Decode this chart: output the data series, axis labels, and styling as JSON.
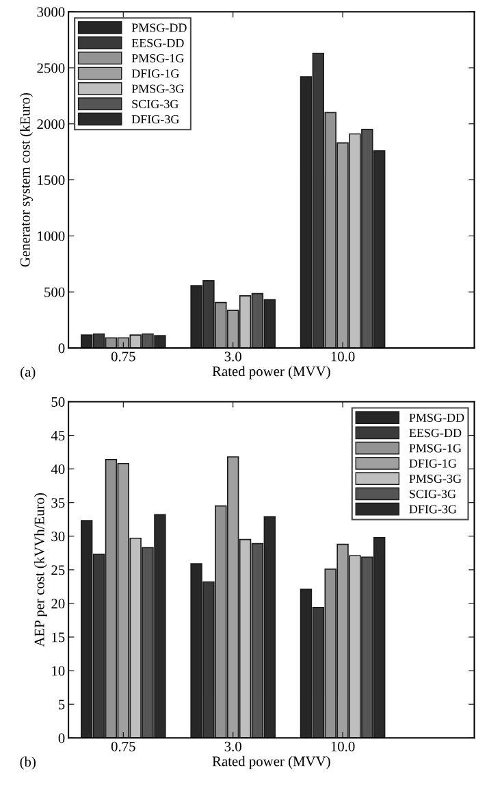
{
  "chart_data": [
    {
      "type": "bar",
      "xlabel": "Rated power (MVV)",
      "ylabel": "Generator system cost (kEuro)",
      "annotations": [
        "(a)"
      ],
      "categories": [
        "0.75",
        "3.0",
        "10.0"
      ],
      "ylim": [
        0,
        3000
      ],
      "yticks": [
        0,
        500,
        1000,
        1500,
        2000,
        2500,
        3000
      ],
      "legend": "top left",
      "grid": false,
      "series": [
        {
          "name": "PMSG-DD",
          "color": "#262626",
          "values": [
            115,
            555,
            2420
          ]
        },
        {
          "name": "EESG-DD",
          "color": "#3a3a3a",
          "values": [
            125,
            600,
            2630
          ]
        },
        {
          "name": "PMSG-1G",
          "color": "#939393",
          "values": [
            90,
            405,
            2100
          ]
        },
        {
          "name": "DFIG-1G",
          "color": "#a0a0a0",
          "values": [
            90,
            335,
            1830
          ]
        },
        {
          "name": "PMSG-3G",
          "color": "#bfbfbf",
          "values": [
            115,
            465,
            1910
          ]
        },
        {
          "name": "SCIG-3G",
          "color": "#555555",
          "values": [
            125,
            485,
            1950
          ]
        },
        {
          "name": "DFIG-3G",
          "color": "#2a2a2a",
          "values": [
            110,
            430,
            1760
          ]
        }
      ]
    },
    {
      "type": "bar",
      "xlabel": "Rated power (MVV)",
      "ylabel": "AEP per cost (kVVh/Euro)",
      "annotations": [
        "(b)"
      ],
      "categories": [
        "0.75",
        "3.0",
        "10.0"
      ],
      "ylim": [
        0,
        50
      ],
      "yticks": [
        0,
        5,
        10,
        15,
        20,
        25,
        30,
        35,
        40,
        45,
        50
      ],
      "legend": "top right",
      "grid": false,
      "series": [
        {
          "name": "PMSG-DD",
          "color": "#262626",
          "values": [
            32.3,
            25.9,
            22.1
          ]
        },
        {
          "name": "EESG-DD",
          "color": "#3a3a3a",
          "values": [
            27.3,
            23.2,
            19.4
          ]
        },
        {
          "name": "PMSG-1G",
          "color": "#939393",
          "values": [
            41.4,
            34.5,
            25.1
          ]
        },
        {
          "name": "DFIG-1G",
          "color": "#a0a0a0",
          "values": [
            40.8,
            41.8,
            28.8
          ]
        },
        {
          "name": "PMSG-3G",
          "color": "#bfbfbf",
          "values": [
            29.7,
            29.5,
            27.1
          ]
        },
        {
          "name": "SCIG-3G",
          "color": "#555555",
          "values": [
            28.3,
            28.9,
            26.9
          ]
        },
        {
          "name": "DFIG-3G",
          "color": "#2a2a2a",
          "values": [
            33.2,
            32.9,
            29.8
          ]
        }
      ]
    }
  ]
}
